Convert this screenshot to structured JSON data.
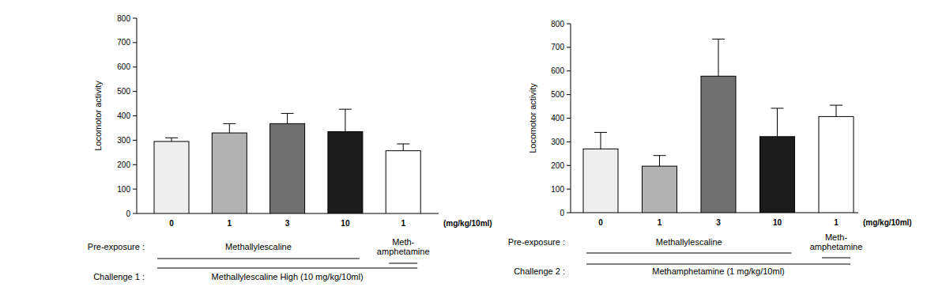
{
  "chart_data": [
    {
      "type": "bar",
      "y_label": "Locomotor activity",
      "categories": [
        "0",
        "1",
        "3",
        "10",
        "1"
      ],
      "values": [
        295,
        330,
        368,
        335,
        257
      ],
      "errors": [
        15,
        38,
        42,
        92,
        28
      ],
      "colors": [
        "#eeeeee",
        "#b2b2b2",
        "#707070",
        "#1c1c1c",
        "#ffffff"
      ],
      "ylim": [
        0,
        800
      ],
      "yticks": [
        0,
        100,
        200,
        300,
        400,
        500,
        600,
        700,
        800
      ],
      "x_unit_label": "(mg/kg/10ml)",
      "pre_exposure_label": "Pre-exposure :",
      "groups": [
        {
          "label": "Methallylescaline",
          "count": 4
        },
        {
          "label": "Meth-\namphetamine",
          "count": 1
        }
      ],
      "challenge": {
        "label": "Challenge 1 :",
        "text": "Methallylescaline High (10 mg/kg/10ml)"
      }
    },
    {
      "type": "bar",
      "y_label": "Locomotor activity",
      "categories": [
        "0",
        "1",
        "3",
        "10",
        "1"
      ],
      "values": [
        270,
        197,
        578,
        322,
        407
      ],
      "errors": [
        70,
        45,
        157,
        120,
        48
      ],
      "colors": [
        "#eeeeee",
        "#b2b2b2",
        "#707070",
        "#1c1c1c",
        "#ffffff"
      ],
      "ylim": [
        0,
        800
      ],
      "yticks": [
        0,
        100,
        200,
        300,
        400,
        500,
        600,
        700,
        800
      ],
      "x_unit_label": "(mg/kg/10ml)",
      "pre_exposure_label": "Pre-exposure :",
      "groups": [
        {
          "label": "Methallylescaline",
          "count": 4
        },
        {
          "label": "Meth-\namphetamine",
          "count": 1
        }
      ],
      "challenge": {
        "label": "Challenge 2 :",
        "text": "Methamphetamine (1 mg/kg/10ml)"
      }
    }
  ]
}
